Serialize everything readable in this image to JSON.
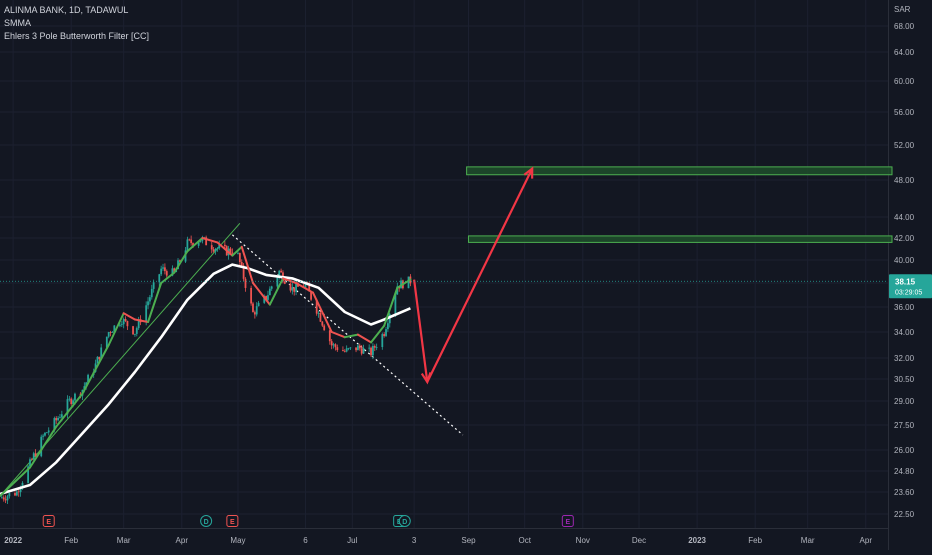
{
  "chart_data": {
    "type": "candlestick",
    "symbol_line": "ALINMA BANK, 1D, TADAWUL",
    "indicators": [
      "SMMA",
      "Ehlers 3 Pole Butterworth Filter [CC]"
    ],
    "currency": "SAR",
    "last_price": "38.15",
    "countdown": "03:29:05",
    "y_ticks": [
      68.0,
      64.0,
      60.0,
      56.0,
      52.0,
      48.0,
      44.0,
      42.0,
      40.0,
      38.0,
      36.0,
      34.0,
      32.0,
      30.5,
      29.0,
      27.5,
      26.0,
      24.8,
      23.6,
      22.5
    ],
    "x_ticks": [
      {
        "label": "2022",
        "date": "2022-01-01",
        "bold": true
      },
      {
        "label": "Feb",
        "date": "2022-02-01"
      },
      {
        "label": "Mar",
        "date": "2022-03-01"
      },
      {
        "label": "Apr",
        "date": "2022-04-01"
      },
      {
        "label": "May",
        "date": "2022-05-01"
      },
      {
        "label": "6",
        "date": "2022-06-06"
      },
      {
        "label": "Jul",
        "date": "2022-07-01"
      },
      {
        "label": "3",
        "date": "2022-08-03"
      },
      {
        "label": "Sep",
        "date": "2022-09-01"
      },
      {
        "label": "Oct",
        "date": "2022-10-01"
      },
      {
        "label": "Nov",
        "date": "2022-11-01"
      },
      {
        "label": "Dec",
        "date": "2022-12-01"
      },
      {
        "label": "2023",
        "date": "2023-01-01",
        "bold": true
      },
      {
        "label": "Feb",
        "date": "2023-02-01"
      },
      {
        "label": "Mar",
        "date": "2023-03-01"
      },
      {
        "label": "Apr",
        "date": "2023-04-01"
      }
    ],
    "candle_path": [
      [
        "2021-12-25",
        23.3
      ],
      [
        "2022-01-03",
        23.6
      ],
      [
        "2022-01-10",
        25.2
      ],
      [
        "2022-01-17",
        26.8
      ],
      [
        "2022-01-24",
        27.8
      ],
      [
        "2022-01-31",
        29.0
      ],
      [
        "2022-02-07",
        29.8
      ],
      [
        "2022-02-14",
        31.5
      ],
      [
        "2022-02-21",
        34.0
      ],
      [
        "2022-02-28",
        35.0
      ],
      [
        "2022-03-07",
        34.0
      ],
      [
        "2022-03-14",
        36.5
      ],
      [
        "2022-03-21",
        39.2
      ],
      [
        "2022-03-28",
        38.8
      ],
      [
        "2022-04-04",
        41.5
      ],
      [
        "2022-04-11",
        41.9
      ],
      [
        "2022-04-18",
        41.2
      ],
      [
        "2022-04-25",
        40.8
      ],
      [
        "2022-04-30",
        41.0
      ],
      [
        "2022-05-04",
        38.5
      ],
      [
        "2022-05-09",
        35.5
      ],
      [
        "2022-05-16",
        36.8
      ],
      [
        "2022-05-23",
        39.0
      ],
      [
        "2022-05-30",
        37.5
      ],
      [
        "2022-06-06",
        37.8
      ],
      [
        "2022-06-13",
        35.5
      ],
      [
        "2022-06-20",
        33.0
      ],
      [
        "2022-06-27",
        32.5
      ],
      [
        "2022-07-04",
        32.8
      ],
      [
        "2022-07-11",
        32.4
      ],
      [
        "2022-07-18",
        34.0
      ],
      [
        "2022-07-25",
        37.8
      ],
      [
        "2022-08-01",
        38.2
      ]
    ],
    "smma": [
      [
        "2021-12-25",
        23.5
      ],
      [
        "2022-01-10",
        24.0
      ],
      [
        "2022-01-24",
        25.3
      ],
      [
        "2022-02-07",
        27.0
      ],
      [
        "2022-02-21",
        28.8
      ],
      [
        "2022-03-07",
        31.0
      ],
      [
        "2022-03-21",
        33.6
      ],
      [
        "2022-04-04",
        36.6
      ],
      [
        "2022-04-18",
        38.8
      ],
      [
        "2022-04-28",
        39.6
      ],
      [
        "2022-05-06",
        39.3
      ],
      [
        "2022-05-16",
        38.7
      ],
      [
        "2022-05-30",
        38.4
      ],
      [
        "2022-06-13",
        37.6
      ],
      [
        "2022-06-27",
        35.6
      ],
      [
        "2022-07-11",
        34.6
      ],
      [
        "2022-07-18",
        35.0
      ],
      [
        "2022-08-01",
        35.9
      ]
    ],
    "butterworth": [
      [
        "2021-12-25",
        23.4
      ],
      [
        "2022-01-10",
        25.0
      ],
      [
        "2022-01-24",
        27.4
      ],
      [
        "2022-02-07",
        29.5
      ],
      [
        "2022-02-21",
        33.0
      ],
      [
        "2022-03-01",
        35.5
      ],
      [
        "2022-03-07",
        35.0
      ],
      [
        "2022-03-14",
        34.8
      ],
      [
        "2022-03-21",
        38.0
      ],
      [
        "2022-03-28",
        38.9
      ],
      [
        "2022-04-04",
        40.8
      ],
      [
        "2022-04-12",
        42.0
      ],
      [
        "2022-04-20",
        41.6
      ],
      [
        "2022-04-28",
        40.4
      ],
      [
        "2022-05-03",
        41.2
      ],
      [
        "2022-05-09",
        38.0
      ],
      [
        "2022-05-18",
        36.2
      ],
      [
        "2022-05-25",
        38.4
      ],
      [
        "2022-06-01",
        38.0
      ],
      [
        "2022-06-10",
        37.2
      ],
      [
        "2022-06-20",
        34.0
      ],
      [
        "2022-06-27",
        33.6
      ],
      [
        "2022-07-04",
        33.8
      ],
      [
        "2022-07-11",
        33.2
      ],
      [
        "2022-07-18",
        34.5
      ],
      [
        "2022-07-25",
        37.6
      ],
      [
        "2022-08-01",
        38.3
      ]
    ],
    "butterworth_colors": {
      "up": "#4caf50",
      "down": "#ef5350"
    },
    "zones": [
      {
        "from": "2022-08-31",
        "to": "2023-04-15",
        "top": 49.5,
        "bottom": 48.6
      },
      {
        "from": "2022-09-01",
        "to": "2023-04-15",
        "top": 42.2,
        "bottom": 41.6
      }
    ],
    "trendline_up": [
      [
        "2021-12-25",
        23.4
      ],
      [
        "2022-05-02",
        43.4
      ]
    ],
    "trendline_down": [
      [
        "2022-04-28",
        42.3
      ],
      [
        "2022-08-29",
        26.9
      ]
    ],
    "projection_arrow": [
      [
        "2022-08-03",
        38.3
      ],
      [
        "2022-08-10",
        30.3
      ],
      [
        "2022-10-05",
        49.3
      ]
    ],
    "event_markers": [
      {
        "date": "2022-01-20",
        "letter": "E",
        "color": "#ef5350"
      },
      {
        "date": "2022-04-14",
        "letter": "D",
        "color": "#26a69a"
      },
      {
        "date": "2022-04-28",
        "letter": "E",
        "color": "#ef5350"
      },
      {
        "date": "2022-07-26",
        "letter": "E",
        "color": "#26a69a"
      },
      {
        "date": "2022-07-29",
        "letter": "D",
        "color": "#26a69a"
      },
      {
        "date": "2022-10-24",
        "letter": "E",
        "color": "#9c27b0"
      }
    ],
    "colors": {
      "background": "#131722",
      "grid": "#1c2030",
      "text": "#b2b5be",
      "candle_up": "#26a69a",
      "candle_down": "#ef5350",
      "smma": "#ffffff",
      "zone_fill": "#1f4d2a",
      "zone_stroke": "#4caf50",
      "trendline_up": "#4caf50",
      "trendline_down": "#ffffff",
      "arrow": "#f23645",
      "price_label": "#26a69a"
    }
  }
}
